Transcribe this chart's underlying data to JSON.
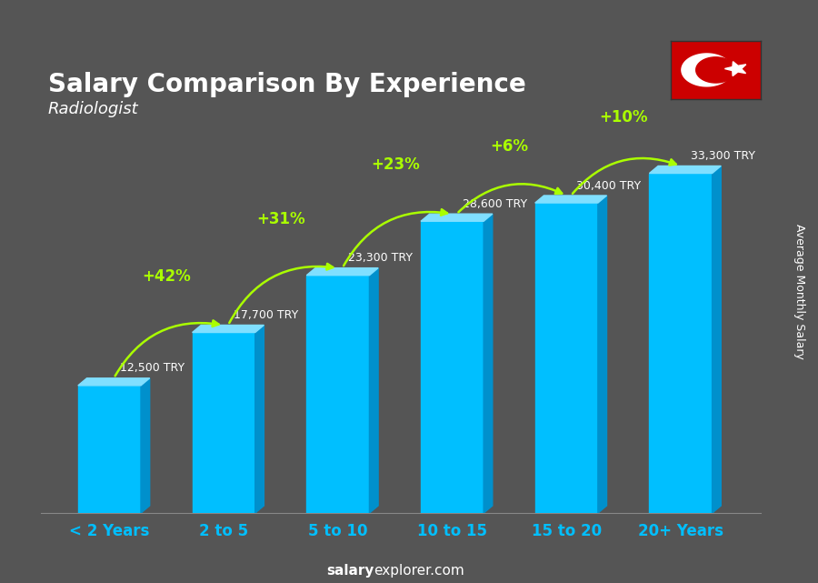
{
  "title": "Salary Comparison By Experience",
  "subtitle": "Radiologist",
  "categories": [
    "< 2 Years",
    "2 to 5",
    "5 to 10",
    "10 to 15",
    "15 to 20",
    "20+ Years"
  ],
  "values": [
    12500,
    17700,
    23300,
    28600,
    30400,
    33300
  ],
  "bar_color_face": "#00BFFF",
  "bar_color_left": "#0090CC",
  "bar_color_top": "#80DFFF",
  "background_color": "#555555",
  "title_color": "#FFFFFF",
  "subtitle_color": "#FFFFFF",
  "xlabel_color": "#00BFFF",
  "salary_labels": [
    "12,500 TRY",
    "17,700 TRY",
    "23,300 TRY",
    "28,600 TRY",
    "30,400 TRY",
    "33,300 TRY"
  ],
  "pct_labels": [
    "+42%",
    "+31%",
    "+23%",
    "+6%",
    "+10%"
  ],
  "pct_color": "#AAFF00",
  "footer_salary": "salary",
  "footer_rest": "explorer.com",
  "ylabel_text": "Average Monthly Salary",
  "flag_bg": "#CC0000",
  "ylim": [
    0,
    40000
  ]
}
